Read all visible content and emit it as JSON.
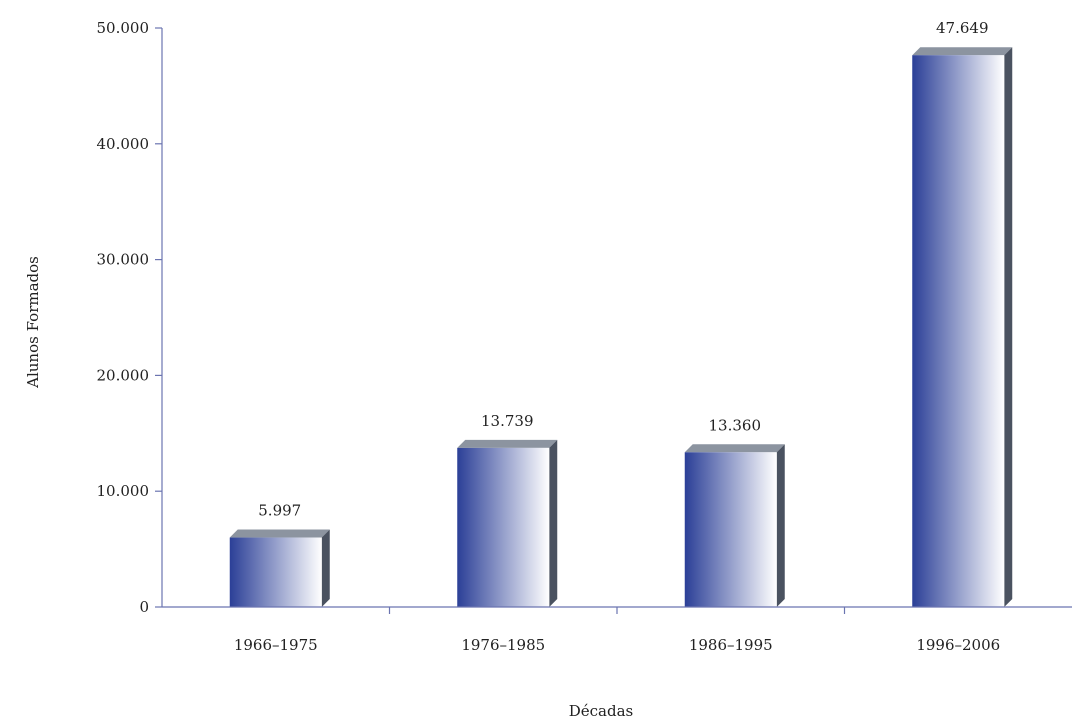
{
  "chart_data": {
    "type": "bar",
    "title": "",
    "xlabel": "Décadas",
    "ylabel": "Alunos Formados",
    "categories": [
      "1966–1975",
      "1976–1985",
      "1986–1995",
      "1996–2006"
    ],
    "values": [
      5997,
      13739,
      13360,
      47649
    ],
    "data_labels": [
      "5.997",
      "13.739",
      "13.360",
      "47.649"
    ],
    "ylim": [
      0,
      50000
    ],
    "yticks": [
      0,
      10000,
      20000,
      30000,
      40000,
      50000
    ],
    "ytick_labels": [
      "0",
      "10.000",
      "20.000",
      "30.000",
      "40.000",
      "50.000"
    ],
    "grid": false,
    "legend": "none",
    "colors": {
      "bar_dark": "#2b3f97",
      "bar_light": "#ffffff",
      "bar_side": "#4a5260",
      "bar_top": "#8c94a0",
      "axis": "#6b74b0"
    }
  }
}
